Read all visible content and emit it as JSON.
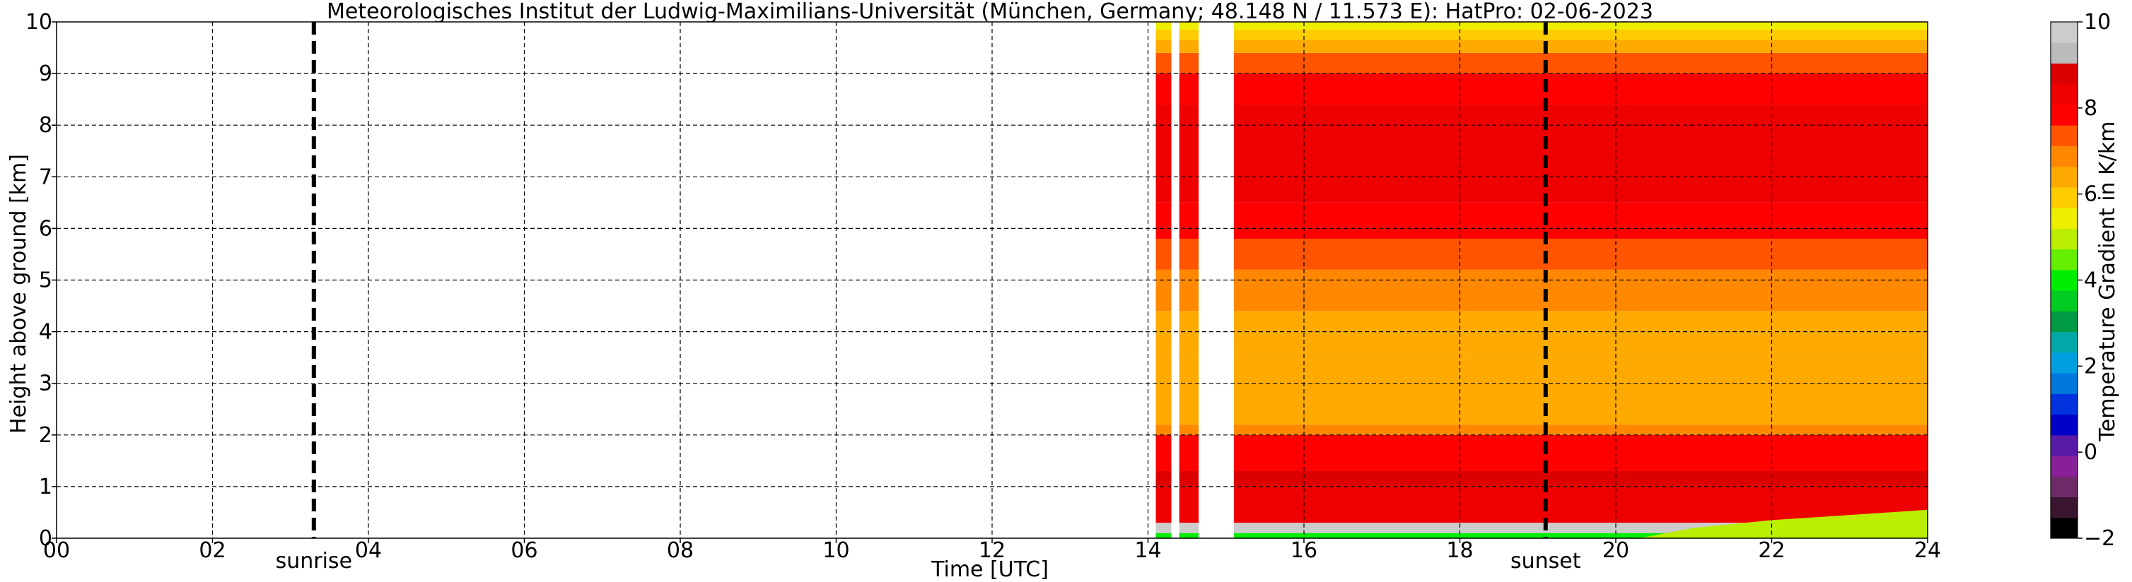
{
  "chart_data": {
    "type": "heatmap",
    "title": "Meteorologisches Institut der Ludwig-Maximilians-Universität (München, Germany; 48.148 N / 11.573 E):    HatPro: 02-06-2023",
    "xlabel": "Time [UTC]",
    "ylabel": "Height above ground [km]",
    "xlim": [
      0,
      24
    ],
    "ylim": [
      0,
      10
    ],
    "x_ticks": [
      0,
      2,
      4,
      6,
      8,
      10,
      12,
      14,
      16,
      18,
      20,
      22,
      24
    ],
    "x_tick_labels": [
      "00",
      "02",
      "04",
      "06",
      "08",
      "10",
      "12",
      "14",
      "16",
      "18",
      "20",
      "22",
      "24"
    ],
    "y_ticks": [
      0,
      1,
      2,
      3,
      4,
      5,
      6,
      7,
      8,
      9,
      10
    ],
    "y_tick_labels": [
      "0",
      "1",
      "2",
      "3",
      "4",
      "5",
      "6",
      "7",
      "8",
      "9",
      "10"
    ],
    "grid": true,
    "markers": [
      {
        "label": "sunrise",
        "x": 3.3
      },
      {
        "label": "sunset",
        "x": 19.1
      }
    ],
    "colorbar": {
      "label": "Temperature Gradient in K/km",
      "range": [
        -2,
        10
      ],
      "ticks": [
        -2,
        0,
        2,
        4,
        6,
        8,
        10
      ],
      "tick_labels": [
        "−2",
        "0",
        "2",
        "4",
        "6",
        "8",
        "10"
      ],
      "colors": [
        "#000000",
        "#3a1530",
        "#6e2a68",
        "#8a1f9a",
        "#5a1aa8",
        "#0000c8",
        "#0033dd",
        "#0077dd",
        "#00a0e0",
        "#00a8a8",
        "#009944",
        "#00cc22",
        "#00ee00",
        "#66ee00",
        "#bbee00",
        "#eeee00",
        "#ffcc00",
        "#ffaa00",
        "#ff8800",
        "#ff5500",
        "#ff0000",
        "#ee0000",
        "#dd0000",
        "#bbbbbb",
        "#cccccc"
      ]
    },
    "data_start": 14.1,
    "data_gaps": [
      [
        14.3,
        14.4
      ],
      [
        14.65,
        15.1
      ]
    ],
    "profile_km": [
      {
        "h0": 0.0,
        "h1": 0.1,
        "value": 4.0
      },
      {
        "h0": 0.1,
        "h1": 0.3,
        "value": 9.8
      },
      {
        "h0": 0.3,
        "h1": 1.0,
        "value": 8.3
      },
      {
        "h0": 1.0,
        "h1": 1.3,
        "value": 9.0
      },
      {
        "h0": 1.3,
        "h1": 2.0,
        "value": 8.0
      },
      {
        "h0": 2.0,
        "h1": 2.2,
        "value": 7.1
      },
      {
        "h0": 2.2,
        "h1": 3.6,
        "value": 6.3
      },
      {
        "h0": 3.6,
        "h1": 4.4,
        "value": 6.6
      },
      {
        "h0": 4.4,
        "h1": 5.2,
        "value": 7.0
      },
      {
        "h0": 5.2,
        "h1": 5.8,
        "value": 7.4
      },
      {
        "h0": 5.8,
        "h1": 6.5,
        "value": 8.0
      },
      {
        "h0": 6.5,
        "h1": 8.4,
        "value": 8.4
      },
      {
        "h0": 8.4,
        "h1": 9.0,
        "value": 7.8
      },
      {
        "h0": 9.0,
        "h1": 9.4,
        "value": 7.2
      },
      {
        "h0": 9.4,
        "h1": 9.65,
        "value": 6.6
      },
      {
        "h0": 9.65,
        "h1": 9.85,
        "value": 5.8
      },
      {
        "h0": 9.85,
        "h1": 10.0,
        "value": 5.4
      }
    ],
    "evening_surface_layer": [
      {
        "t": 20.3,
        "top_km": 0.0,
        "value": 5.0
      },
      {
        "t": 21.0,
        "top_km": 0.2,
        "value": 5.0
      },
      {
        "t": 22.0,
        "top_km": 0.35,
        "value": 5.0
      },
      {
        "t": 23.0,
        "top_km": 0.45,
        "value": 5.0
      },
      {
        "t": 24.0,
        "top_km": 0.55,
        "value": 5.0
      }
    ]
  }
}
